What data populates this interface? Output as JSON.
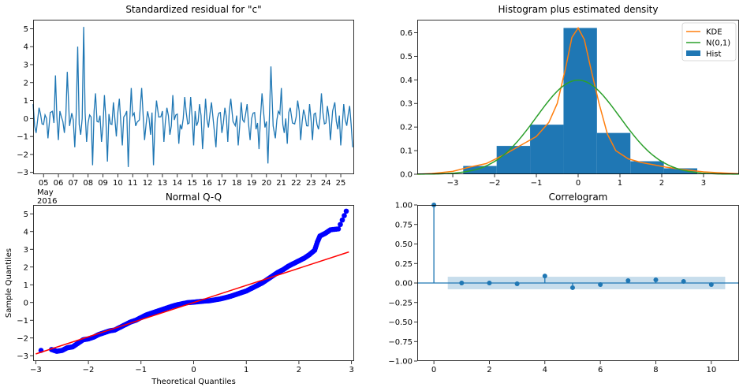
{
  "chart_data": [
    {
      "type": "line",
      "title": "Standardized residual for \"c\"",
      "xlabel": "",
      "ylabel": "",
      "ylim": [
        -3.1,
        5.5
      ],
      "yticks": [
        -3,
        -2,
        -1,
        0,
        1,
        2,
        3,
        4,
        5
      ],
      "x_tick_labels": [
        "05",
        "06",
        "07",
        "08",
        "09",
        "10",
        "11",
        "12",
        "13",
        "14",
        "15",
        "16",
        "17",
        "18",
        "19",
        "20",
        "21",
        "22",
        "23",
        "24",
        "25"
      ],
      "x_offset_labels": [
        "May",
        "2016"
      ],
      "xlim_days": [
        4.3,
        25.9
      ],
      "series": [
        {
          "color": "#1f77b4",
          "x": [
            4.3,
            4.5,
            4.7,
            4.9,
            5.1,
            5.3,
            5.6,
            5.8,
            6.0,
            6.2,
            6.4,
            6.6,
            6.9,
            7.1,
            7.3,
            7.5,
            7.7,
            7.9,
            8.1,
            8.3,
            8.5,
            8.7,
            8.9,
            9.1,
            9.3,
            9.5,
            9.7,
            9.9,
            10.1,
            10.3,
            10.5,
            10.7,
            10.9,
            11.1,
            11.3,
            11.6,
            11.8,
            12.0,
            12.2,
            12.4,
            12.6,
            12.9,
            13.1,
            13.3,
            13.5,
            13.7,
            13.9,
            14.1,
            14.3,
            14.5,
            14.7,
            14.9,
            15.1,
            15.3,
            15.5,
            15.7,
            15.9,
            16.1,
            16.3,
            16.6,
            16.8,
            17.0,
            17.2,
            17.4,
            17.6,
            17.9,
            18.1,
            18.3,
            18.5,
            18.7,
            18.9,
            19.1,
            19.3,
            19.5,
            19.7,
            19.9,
            20.1,
            20.3,
            20.6,
            20.8,
            21.0,
            21.2,
            21.4,
            21.6,
            21.9,
            22.1,
            22.3,
            22.5,
            22.7,
            22.9,
            23.1,
            23.3,
            23.5,
            23.7,
            23.9,
            24.1,
            24.3,
            24.6,
            24.8,
            25.0,
            25.2,
            25.4,
            25.6,
            25.8
          ],
          "y": [
            0.8,
            -0.8,
            0.6,
            -0.3,
            0.2,
            -1.1,
            0.4,
            2.4,
            -1.2,
            0.1,
            -0.8,
            2.6,
            0.3,
            -1.6,
            4.0,
            -0.9,
            5.1,
            -1.3,
            0.2,
            -2.6,
            1.4,
            -0.2,
            -1.3,
            1.3,
            -2.4,
            -0.3,
            0.9,
            -1.0,
            1.1,
            -1.5,
            0.2,
            -2.7,
            1.7,
            0.3,
            -0.2,
            1.7,
            -1.2,
            0.4,
            -0.9,
            -2.6,
            1.0,
            0.1,
            -1.3,
            0.6,
            -0.9,
            1.3,
            0.2,
            -1.4,
            -0.6,
            1.2,
            -0.3,
            1.2,
            -1.5,
            -0.4,
            0.8,
            -1.7,
            1.1,
            -0.5,
            0.9,
            -1.6,
            0.3,
            -0.8,
            0.6,
            -1.3,
            1.1,
            -0.4,
            -1.5,
            0.9,
            -0.2,
            0.8,
            -1.2,
            0.3,
            -0.6,
            -1.7,
            1.4,
            -0.5,
            -2.5,
            2.9,
            -1.1,
            0.4,
            1.7,
            -0.8,
            -1.4,
            0.6,
            -0.3,
            1.0,
            -1.2,
            0.5,
            -0.4,
            0.8,
            -1.2,
            0.3,
            -0.6,
            1.4,
            -0.3,
            0.7,
            -1.2,
            0.9,
            -0.6,
            -1.5,
            0.8,
            -0.4,
            0.7,
            -1.6
          ]
        }
      ]
    },
    {
      "type": "bar",
      "title": "Histogram plus estimated density",
      "xlabel": "",
      "ylabel": "",
      "xlim": [
        -3.85,
        3.85
      ],
      "ylim": [
        0,
        0.655
      ],
      "xticks": [
        -3,
        -2,
        -1,
        0,
        1,
        2,
        3
      ],
      "yticks": [
        0.0,
        0.1,
        0.2,
        0.3,
        0.4,
        0.5,
        0.6
      ],
      "bins": {
        "edges": [
          -2.75,
          -1.95,
          -1.15,
          -0.35,
          0.45,
          1.25,
          2.05,
          2.85
        ],
        "values": [
          0.035,
          0.12,
          0.21,
          0.62,
          0.175,
          0.055,
          0.025
        ],
        "color": "#1f77b4"
      },
      "series": [
        {
          "name": "KDE",
          "color": "#ff7f0e",
          "x": [
            -3.85,
            -3.5,
            -3.0,
            -2.6,
            -2.2,
            -1.8,
            -1.4,
            -1.0,
            -0.7,
            -0.5,
            -0.3,
            -0.15,
            0.0,
            0.15,
            0.3,
            0.5,
            0.7,
            0.9,
            1.2,
            1.5,
            1.8,
            2.1,
            2.5,
            3.0,
            3.5,
            3.85
          ],
          "y": [
            0.0,
            0.003,
            0.012,
            0.03,
            0.045,
            0.08,
            0.12,
            0.16,
            0.22,
            0.3,
            0.45,
            0.58,
            0.62,
            0.57,
            0.45,
            0.3,
            0.17,
            0.1,
            0.065,
            0.05,
            0.04,
            0.03,
            0.02,
            0.01,
            0.005,
            0.002
          ]
        },
        {
          "name": "N(0,1)",
          "color": "#2ca02c",
          "function": "normal_pdf"
        }
      ],
      "legend": {
        "position": "upper right",
        "entries": [
          "KDE",
          "N(0,1)",
          "Hist"
        ]
      }
    },
    {
      "type": "scatter",
      "title": "Normal Q-Q",
      "xlabel": "Theoretical Quantiles",
      "ylabel": "Sample Quantiles",
      "xlim": [
        -3.05,
        3.05
      ],
      "ylim": [
        -3.3,
        5.5
      ],
      "xticks": [
        -3,
        -2,
        -1,
        0,
        1,
        2,
        3
      ],
      "yticks": [
        -3,
        -2,
        -1,
        0,
        1,
        2,
        3,
        4,
        5
      ],
      "points_color": "#0000ff",
      "reference_line": {
        "color": "#ff0000",
        "x": [
          -3.0,
          2.95
        ],
        "y": [
          -2.9,
          2.85
        ]
      },
      "quantile_points": [
        [
          -2.9,
          -2.7
        ],
        [
          -2.7,
          -2.65
        ],
        [
          -2.6,
          -2.75
        ],
        [
          -2.5,
          -2.7
        ],
        [
          -2.4,
          -2.55
        ],
        [
          -2.3,
          -2.5
        ],
        [
          -2.2,
          -2.3
        ],
        [
          -2.1,
          -2.1
        ],
        [
          -2.0,
          -2.05
        ],
        [
          -1.9,
          -1.95
        ],
        [
          -1.8,
          -1.8
        ],
        [
          -1.7,
          -1.7
        ],
        [
          -1.6,
          -1.6
        ],
        [
          -1.5,
          -1.55
        ],
        [
          -1.4,
          -1.4
        ],
        [
          -1.3,
          -1.25
        ],
        [
          -1.2,
          -1.1
        ],
        [
          -1.1,
          -1.0
        ],
        [
          -1.0,
          -0.85
        ],
        [
          -0.9,
          -0.7
        ],
        [
          -0.8,
          -0.6
        ],
        [
          -0.7,
          -0.5
        ],
        [
          -0.6,
          -0.4
        ],
        [
          -0.5,
          -0.3
        ],
        [
          -0.4,
          -0.2
        ],
        [
          -0.3,
          -0.12
        ],
        [
          -0.2,
          -0.06
        ],
        [
          -0.1,
          0.0
        ],
        [
          0.0,
          0.02
        ],
        [
          0.1,
          0.05
        ],
        [
          0.2,
          0.08
        ],
        [
          0.3,
          0.1
        ],
        [
          0.4,
          0.15
        ],
        [
          0.5,
          0.2
        ],
        [
          0.6,
          0.27
        ],
        [
          0.7,
          0.35
        ],
        [
          0.8,
          0.45
        ],
        [
          0.9,
          0.55
        ],
        [
          1.0,
          0.65
        ],
        [
          1.1,
          0.8
        ],
        [
          1.2,
          0.95
        ],
        [
          1.3,
          1.1
        ],
        [
          1.4,
          1.3
        ],
        [
          1.5,
          1.5
        ],
        [
          1.6,
          1.7
        ],
        [
          1.7,
          1.85
        ],
        [
          1.8,
          2.05
        ],
        [
          1.9,
          2.2
        ],
        [
          2.0,
          2.35
        ],
        [
          2.1,
          2.5
        ],
        [
          2.2,
          2.7
        ],
        [
          2.3,
          2.95
        ],
        [
          2.35,
          3.4
        ],
        [
          2.4,
          3.75
        ],
        [
          2.5,
          3.9
        ],
        [
          2.6,
          4.1
        ],
        [
          2.75,
          4.15
        ],
        [
          2.9,
          5.15
        ]
      ]
    },
    {
      "type": "scatter",
      "title": "Correlogram",
      "xlabel": "",
      "ylabel": "",
      "xlim": [
        -0.6,
        11.0
      ],
      "ylim": [
        -1.0,
        1.0
      ],
      "xticks": [
        0,
        2,
        4,
        6,
        8,
        10
      ],
      "yticks": [
        -1.0,
        -0.75,
        -0.5,
        -0.25,
        0.0,
        0.25,
        0.5,
        0.75,
        1.0
      ],
      "lags": [
        0,
        1,
        2,
        3,
        4,
        5,
        6,
        7,
        8,
        9,
        10
      ],
      "acf": [
        1.0,
        0.0,
        0.0,
        -0.01,
        0.09,
        -0.06,
        -0.02,
        0.03,
        0.04,
        0.02,
        -0.02
      ],
      "confidence_band": {
        "lower": -0.08,
        "upper": 0.08,
        "from_lag": 0.5,
        "to_lag": 10.5,
        "color": "#1f77b4"
      },
      "color": "#1f77b4"
    }
  ]
}
